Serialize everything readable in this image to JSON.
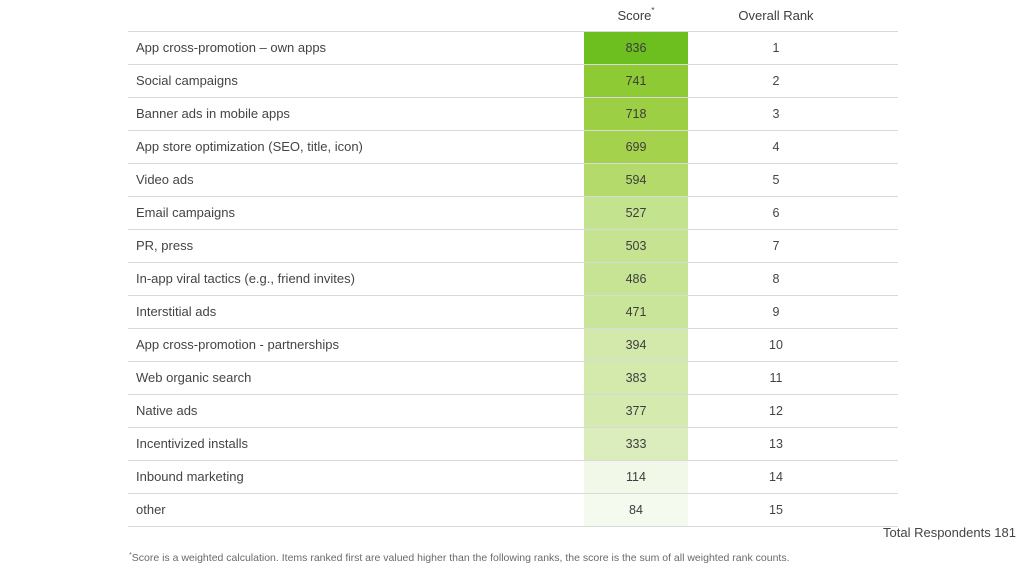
{
  "header": {
    "score_label": "Score",
    "score_marker": "*",
    "rank_label": "Overall Rank"
  },
  "chart_data": {
    "type": "table",
    "columns": [
      "",
      "Score*",
      "Overall Rank"
    ],
    "rows": [
      {
        "label": "App cross-promotion – own apps",
        "score": 836,
        "rank": 1
      },
      {
        "label": "Social campaigns",
        "score": 741,
        "rank": 2
      },
      {
        "label": "Banner ads in mobile apps",
        "score": 718,
        "rank": 3
      },
      {
        "label": "App store optimization (SEO, title, icon)",
        "score": 699,
        "rank": 4
      },
      {
        "label": "Video ads",
        "score": 594,
        "rank": 5
      },
      {
        "label": "Email campaigns",
        "score": 527,
        "rank": 6
      },
      {
        "label": "PR, press",
        "score": 503,
        "rank": 7
      },
      {
        "label": "In-app viral tactics (e.g., friend invites)",
        "score": 486,
        "rank": 8
      },
      {
        "label": "Interstitial ads",
        "score": 471,
        "rank": 9
      },
      {
        "label": "App cross-promotion - partnerships",
        "score": 394,
        "rank": 10
      },
      {
        "label": "Web organic search",
        "score": 383,
        "rank": 11
      },
      {
        "label": "Native ads",
        "score": 377,
        "rank": 12
      },
      {
        "label": "Incentivized installs",
        "score": 333,
        "rank": 13
      },
      {
        "label": "Inbound marketing",
        "score": 114,
        "rank": 14
      },
      {
        "label": "other",
        "score": 84,
        "rank": 15
      }
    ],
    "heat_colors": [
      "#6cbf1e",
      "#8dca34",
      "#9ccf44",
      "#a4d24d",
      "#b4da6c",
      "#c4e38e",
      "#c5e391",
      "#c7e495",
      "#c9e599",
      "#d3e9ab",
      "#d4eaad",
      "#d5eaaf",
      "#dcedbd",
      "#f1f8e8",
      "#f5faef"
    ]
  },
  "footer": {
    "total_respondents": "Total Respondents 181",
    "footnote_marker": "*",
    "footnote_text": "Score is a weighted calculation. Items ranked first are valued higher than the following ranks, the score is the sum of all weighted rank counts."
  }
}
